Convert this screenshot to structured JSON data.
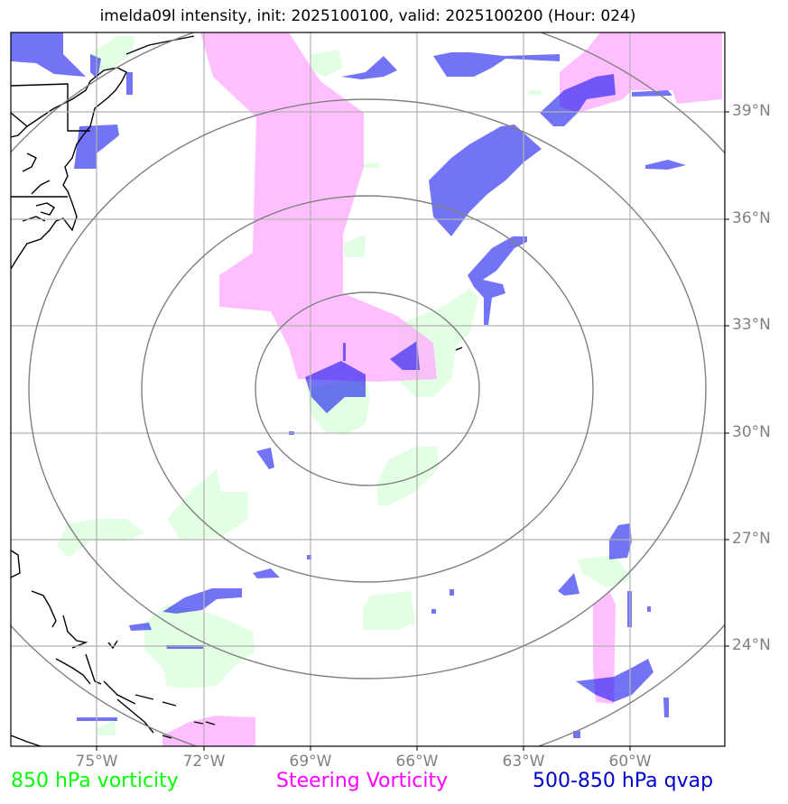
{
  "title": "imelda09l intensity, init: 2025100100, valid: 2025100200 (Hour: 024)",
  "lon_labels": [
    "75°W",
    "72°W",
    "69°W",
    "66°W",
    "63°W",
    "60°W"
  ],
  "lat_labels": [
    "39°N",
    "36°N",
    "33°N",
    "30°N",
    "27°N",
    "24°N"
  ],
  "legend": {
    "vort850": "850 hPa vorticity",
    "steering": "Steering Vorticity",
    "qvap": "500-850 hPa qvap"
  },
  "colors": {
    "vort850": "#00ff00",
    "steering": "#ff00ff",
    "qvap": "#0000cc",
    "grid": "#b0b0b0",
    "rings": "#808080",
    "coast": "#000000"
  }
}
